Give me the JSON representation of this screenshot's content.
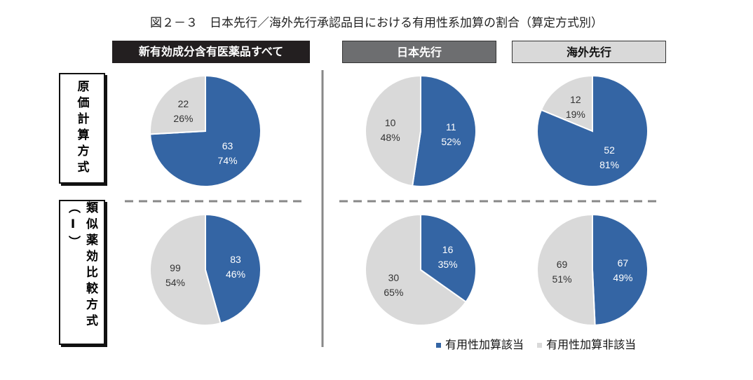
{
  "title": "図２－３　日本先行／海外先行承認品目における有用性系加算の割合（算定方式別）",
  "columns": [
    "新有効成分含有医薬品すべて",
    "日本先行",
    "海外先行"
  ],
  "rows": [
    "原価計算方式",
    "類似薬効比較方式（Ⅰ）"
  ],
  "legend": [
    "有用性加算該当",
    "有用性加算非該当"
  ],
  "colors": {
    "applicable": "#3465a4",
    "not_applicable": "#d9d9d9"
  },
  "chart_data": [
    {
      "type": "pie",
      "row": "原価計算方式",
      "column": "新有効成分含有医薬品すべて",
      "slices": [
        {
          "name": "有用性加算該当",
          "count": 63,
          "percent": "74%"
        },
        {
          "name": "有用性加算非該当",
          "count": 22,
          "percent": "26%"
        }
      ]
    },
    {
      "type": "pie",
      "row": "原価計算方式",
      "column": "日本先行",
      "slices": [
        {
          "name": "有用性加算該当",
          "count": 11,
          "percent": "52%"
        },
        {
          "name": "有用性加算非該当",
          "count": 10,
          "percent": "48%"
        }
      ]
    },
    {
      "type": "pie",
      "row": "原価計算方式",
      "column": "海外先行",
      "slices": [
        {
          "name": "有用性加算該当",
          "count": 52,
          "percent": "81%"
        },
        {
          "name": "有用性加算非該当",
          "count": 12,
          "percent": "19%"
        }
      ]
    },
    {
      "type": "pie",
      "row": "類似薬効比較方式（Ⅰ）",
      "column": "新有効成分含有医薬品すべて",
      "slices": [
        {
          "name": "有用性加算該当",
          "count": 83,
          "percent": "46%"
        },
        {
          "name": "有用性加算非該当",
          "count": 99,
          "percent": "54%"
        }
      ]
    },
    {
      "type": "pie",
      "row": "類似薬効比較方式（Ⅰ）",
      "column": "日本先行",
      "slices": [
        {
          "name": "有用性加算該当",
          "count": 16,
          "percent": "35%"
        },
        {
          "name": "有用性加算非該当",
          "count": 30,
          "percent": "65%"
        }
      ]
    },
    {
      "type": "pie",
      "row": "類似薬効比較方式（Ⅰ）",
      "column": "海外先行",
      "slices": [
        {
          "name": "有用性加算該当",
          "count": 67,
          "percent": "49%"
        },
        {
          "name": "有用性加算非該当",
          "count": 69,
          "percent": "51%"
        }
      ]
    }
  ]
}
